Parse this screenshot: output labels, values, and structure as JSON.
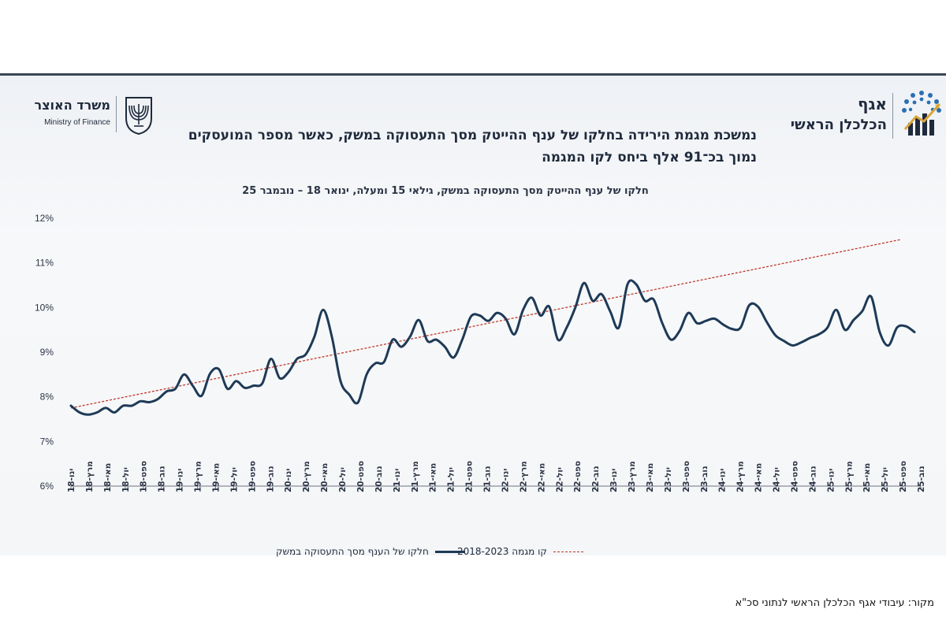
{
  "header": {
    "ministry_he": "משרד האוצר",
    "ministry_en": "Ministry of Finance",
    "org_title": "אגף",
    "org_subtitle": "הכלכלן הראשי",
    "headline": "נמשכת מגמת הירידה בחלקו של ענף ההייטק מסך התעסוקה במשק, כאשר מספר המועסקים נמוך בכ־91 אלף ביחס לקו המגמה"
  },
  "source": "מקור: עיבודי אגף הכלכלן הראשי לנתוני סכ\"א",
  "colors": {
    "series": "#1e3a56",
    "trend": "#c0392b",
    "logo_blue": "#2a6fb4",
    "logo_gold": "#d9a53a"
  },
  "chart_data": {
    "type": "line",
    "title": "חלקו של ענף ההייטק מסך התעסוקה במשק, גילאי 15 ומעלה, ינואר 18 – נובמבר 25",
    "xlabel": "",
    "ylabel": "",
    "ylim": [
      0.06,
      0.12
    ],
    "y_ticks": [
      "12%",
      "11%",
      "10%",
      "9%",
      "8%",
      "7%",
      "6%"
    ],
    "grid": false,
    "legend_position": "bottom",
    "x_tick_labels": [
      "ינו-18",
      "מרץ-18",
      "מאי-18",
      "יול-18",
      "ספט-18",
      "נוב-18",
      "ינו-19",
      "מרץ-19",
      "מאי-19",
      "יול-19",
      "ספט-19",
      "נוב-19",
      "ינו-20",
      "מרץ-20",
      "מאי-20",
      "יול-20",
      "ספט-20",
      "נוב-20",
      "ינו-21",
      "מרץ-21",
      "מאי-21",
      "יול-21",
      "ספט-21",
      "נוב-21",
      "ינו-22",
      "מרץ-22",
      "מאי-22",
      "יול-22",
      "ספט-22",
      "נוב-22",
      "ינו-23",
      "מרץ-23",
      "מאי-23",
      "יול-23",
      "ספט-23",
      "נוב-23",
      "ינו-24",
      "מרץ-24",
      "מאי-24",
      "יול-24",
      "ספט-24",
      "נוב-24",
      "ינו-25",
      "מרץ-25",
      "מאי-25",
      "יול-25",
      "ספט-25",
      "נוב-25"
    ],
    "series": [
      {
        "name": "חלקו של הענף מסך התעסוקה במשק",
        "style": "solid",
        "values": [
          0.078,
          0.0765,
          0.076,
          0.0765,
          0.0775,
          0.0765,
          0.078,
          0.078,
          0.079,
          0.0788,
          0.0795,
          0.0812,
          0.0818,
          0.085,
          0.0825,
          0.0802,
          0.0852,
          0.0862,
          0.0818,
          0.0835,
          0.082,
          0.0825,
          0.083,
          0.0885,
          0.0842,
          0.0855,
          0.0885,
          0.0895,
          0.0935,
          0.0995,
          0.0935,
          0.0835,
          0.0805,
          0.0787,
          0.085,
          0.0875,
          0.0878,
          0.0928,
          0.0912,
          0.0935,
          0.0972,
          0.0925,
          0.0928,
          0.0912,
          0.0888,
          0.0928,
          0.098,
          0.0982,
          0.097,
          0.0988,
          0.0975,
          0.094,
          0.0995,
          0.1022,
          0.0982,
          0.1002,
          0.0928,
          0.0955,
          0.1,
          0.1055,
          0.1015,
          0.103,
          0.0992,
          0.0955,
          0.1052,
          0.1052,
          0.1015,
          0.1018,
          0.0965,
          0.0928,
          0.0948,
          0.0988,
          0.0965,
          0.097,
          0.0975,
          0.0962,
          0.0952,
          0.0955,
          0.1005,
          0.1002,
          0.0968,
          0.0938,
          0.0925,
          0.0915,
          0.0922,
          0.0932,
          0.094,
          0.0955,
          0.0995,
          0.095,
          0.0972,
          0.0992,
          0.1025,
          0.0945,
          0.0915,
          0.0955,
          0.0958,
          0.0945
        ]
      },
      {
        "name": "קו מגמה 2018-2023",
        "style": "dashed",
        "start": 0.0775,
        "end": 0.1152
      }
    ]
  }
}
